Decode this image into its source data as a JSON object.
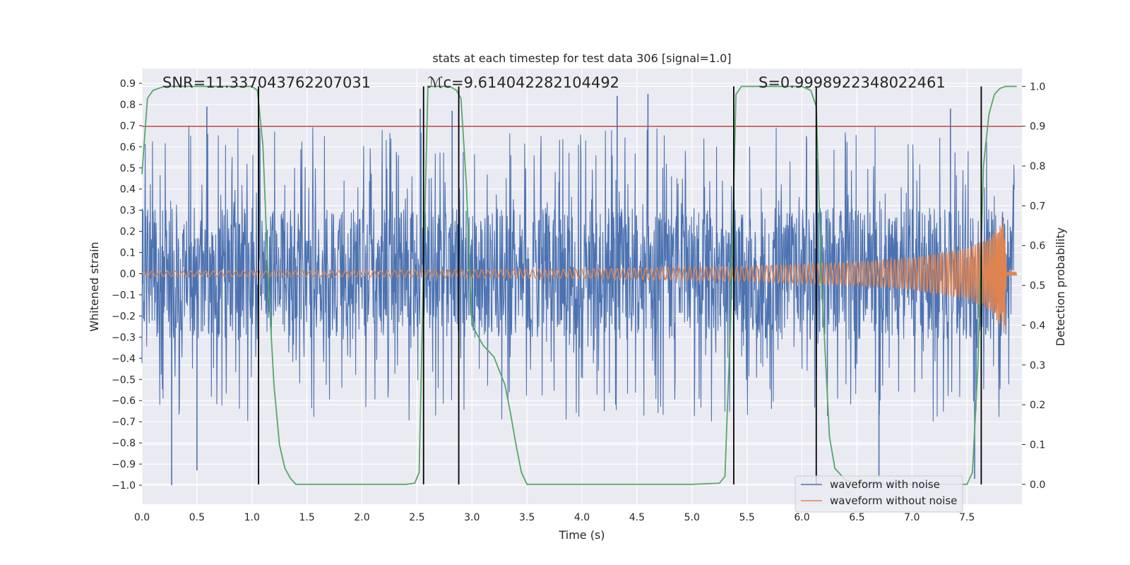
{
  "chart_data": {
    "type": "line",
    "title": "stats at each timestep for test data 306 [signal=1.0]",
    "xlabel": "Time (s)",
    "ylabel": "Whitened strain",
    "y2label": "Detection probability",
    "xlim": [
      0.0,
      8.0
    ],
    "ylim": [
      -1.09,
      0.97
    ],
    "y2lim": [
      -0.05,
      1.045
    ],
    "xticks": [
      0.0,
      0.5,
      1.0,
      1.5,
      2.0,
      2.5,
      3.0,
      3.5,
      4.0,
      4.5,
      5.0,
      5.5,
      6.0,
      6.5,
      7.0,
      7.5
    ],
    "xtick_labels": [
      "0.0",
      "0.5",
      "1.0",
      "1.5",
      "2.0",
      "2.5",
      "3.0",
      "3.5",
      "4.0",
      "4.5",
      "5.0",
      "5.5",
      "6.0",
      "6.5",
      "7.0",
      "7.5"
    ],
    "yticks": [
      -1.0,
      -0.9,
      -0.8,
      -0.7,
      -0.6,
      -0.5,
      -0.4,
      -0.3,
      -0.2,
      -0.1,
      0.0,
      0.1,
      0.2,
      0.3,
      0.4,
      0.5,
      0.6,
      0.7,
      0.8,
      0.9
    ],
    "ytick_labels": [
      "−1.0",
      "−0.9",
      "−0.8",
      "−0.7",
      "−0.6",
      "−0.5",
      "−0.4",
      "−0.3",
      "−0.2",
      "−0.1",
      "0.0",
      "0.1",
      "0.2",
      "0.3",
      "0.4",
      "0.5",
      "0.6",
      "0.7",
      "0.8",
      "0.9"
    ],
    "y2ticks": [
      0.0,
      0.1,
      0.2,
      0.3,
      0.4,
      0.5,
      0.6,
      0.7,
      0.8,
      0.9,
      1.0
    ],
    "y2tick_labels": [
      "0.0",
      "0.1",
      "0.2",
      "0.3",
      "0.4",
      "0.5",
      "0.6",
      "0.7",
      "0.8",
      "0.9",
      "1.0"
    ],
    "annotations": [
      {
        "text": "SNR=11.337043762207031",
        "x": 0.2,
        "y": 0.9
      },
      {
        "text": "ℳc=9.614042282104492",
        "x": 2.6,
        "y": 0.9
      },
      {
        "text": "S=0.9998922348022461",
        "x": 5.6,
        "y": 0.9
      }
    ],
    "threshold": {
      "y2": 0.9,
      "color": "#c03d3e"
    },
    "vertical_lines": [
      1.06,
      2.56,
      2.88,
      5.38,
      6.13,
      7.63
    ],
    "vertical_line_y2_range": [
      0.0,
      1.0
    ],
    "legend": {
      "position": "lower-right",
      "entries": [
        {
          "label": "waveform with noise",
          "color": "#4c72b0"
        },
        {
          "label": "waveform without noise",
          "color": "#dd8452"
        }
      ]
    },
    "series": [
      {
        "name": "waveform with noise",
        "color": "#4c72b0",
        "kind": "noise",
        "envelope_approx": {
          "typical_max": 0.3,
          "typical_min": -0.25,
          "peak_max": 0.79,
          "peak_min": -1.0
        },
        "notable_spikes": [
          {
            "x": 0.27,
            "y": -1.0
          },
          {
            "x": 0.59,
            "y": 0.79
          },
          {
            "x": 0.5,
            "y": -0.93
          },
          {
            "x": 2.53,
            "y": 0.78
          },
          {
            "x": 4.32,
            "y": 0.84
          },
          {
            "x": 4.6,
            "y": 0.85
          },
          {
            "x": 6.7,
            "y": -0.96
          },
          {
            "x": 7.57,
            "y": -0.97
          },
          {
            "x": 2.82,
            "y": 0.77
          },
          {
            "x": 7.35,
            "y": 0.78
          }
        ]
      },
      {
        "name": "waveform without noise",
        "color": "#dd8452",
        "kind": "chirp",
        "amplitude_points": [
          [
            0.0,
            0.012
          ],
          [
            2.0,
            0.015
          ],
          [
            4.0,
            0.022
          ],
          [
            5.5,
            0.035
          ],
          [
            6.5,
            0.055
          ],
          [
            7.0,
            0.075
          ],
          [
            7.5,
            0.12
          ],
          [
            7.7,
            0.17
          ],
          [
            7.8,
            0.24
          ],
          [
            7.84,
            0.29
          ],
          [
            7.86,
            0.02
          ]
        ],
        "chirp_end": 7.86
      },
      {
        "name": "detection probability",
        "axis": "y2",
        "color": "#55a868",
        "x": [
          0.0,
          0.05,
          0.1,
          0.2,
          0.4,
          0.7,
          0.9,
          1.0,
          1.05,
          1.1,
          1.15,
          1.2,
          1.25,
          1.3,
          1.35,
          1.4,
          1.6,
          2.0,
          2.4,
          2.48,
          2.52,
          2.56,
          2.6,
          2.7,
          2.8,
          2.86,
          2.9,
          2.95,
          3.0,
          3.1,
          3.2,
          3.3,
          3.35,
          3.4,
          3.45,
          3.5,
          4.0,
          5.0,
          5.25,
          5.3,
          5.35,
          5.4,
          5.45,
          5.5,
          5.6,
          6.0,
          6.08,
          6.13,
          6.18,
          6.25,
          6.3,
          6.4,
          6.6,
          7.0,
          7.3,
          7.5,
          7.55,
          7.6,
          7.65,
          7.7,
          7.75,
          7.8,
          7.85,
          7.95
        ],
        "y": [
          0.78,
          0.97,
          0.99,
          1.0,
          1.0,
          1.0,
          1.0,
          1.0,
          0.99,
          0.85,
          0.5,
          0.25,
          0.1,
          0.04,
          0.015,
          0.0,
          0.0,
          0.0,
          0.0,
          0.003,
          0.03,
          0.55,
          1.0,
          1.0,
          1.0,
          0.99,
          0.97,
          0.75,
          0.4,
          0.35,
          0.32,
          0.25,
          0.18,
          0.1,
          0.03,
          0.0,
          0.0,
          0.0,
          0.003,
          0.02,
          0.4,
          0.98,
          1.0,
          1.0,
          1.0,
          1.0,
          0.99,
          0.95,
          0.5,
          0.12,
          0.04,
          0.01,
          0.0,
          0.0,
          0.0,
          0.0,
          0.03,
          0.3,
          0.8,
          0.93,
          0.98,
          0.995,
          1.0,
          1.0
        ]
      }
    ]
  }
}
